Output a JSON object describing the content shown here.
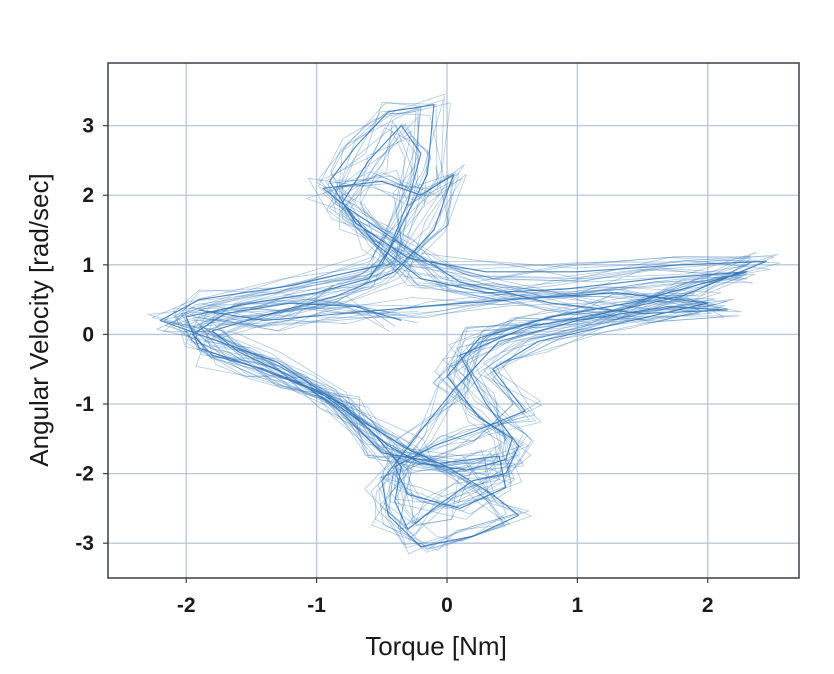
{
  "chart_data": {
    "type": "line",
    "title": "",
    "xlabel": "Torque [Nm]",
    "ylabel": "Angular Velocity [rad/sec]",
    "xlim": [
      -2.6,
      2.7
    ],
    "ylim": [
      -3.5,
      3.9
    ],
    "x_ticks": [
      -2,
      -1,
      0,
      1,
      2
    ],
    "y_ticks": [
      -3,
      -2,
      -1,
      0,
      1,
      2,
      3
    ],
    "x_tick_labels": [
      "-2",
      "-1",
      "0",
      "1",
      "2"
    ],
    "y_tick_labels": [
      "-3",
      "-2",
      "-1",
      "0",
      "1",
      "2",
      "3"
    ],
    "grid": true,
    "legend": "none",
    "line_color": "#2a72b5",
    "grid_color": "#b8c8d8",
    "axis_color": "#3a3f47",
    "series": [
      {
        "values": [
          [
            -0.35,
            0.2
          ],
          [
            -0.7,
            0.4
          ],
          [
            -1.2,
            0.45
          ],
          [
            -1.7,
            0.3
          ],
          [
            -1.95,
            0.0
          ],
          [
            -1.8,
            -0.3
          ],
          [
            -1.4,
            -0.5
          ],
          [
            -1.0,
            -0.8
          ],
          [
            -0.7,
            -1.2
          ],
          [
            -0.45,
            -1.6
          ],
          [
            -0.2,
            -1.85
          ],
          [
            0.15,
            -1.95
          ],
          [
            0.45,
            -1.8
          ],
          [
            0.5,
            -1.5
          ],
          [
            0.25,
            -1.2
          ],
          [
            0.0,
            -0.6
          ],
          [
            0.25,
            -0.05
          ],
          [
            0.8,
            0.25
          ],
          [
            1.4,
            0.45
          ],
          [
            1.9,
            0.7
          ],
          [
            2.3,
            0.9
          ],
          [
            1.6,
            0.8
          ],
          [
            0.9,
            0.65
          ],
          [
            0.3,
            0.6
          ],
          [
            -0.2,
            0.8
          ],
          [
            -0.55,
            1.3
          ],
          [
            -0.8,
            1.9
          ],
          [
            -0.6,
            2.5
          ],
          [
            -0.35,
            3.0
          ],
          [
            -0.2,
            2.6
          ],
          [
            -0.3,
            1.9
          ],
          [
            -0.45,
            1.2
          ],
          [
            -0.6,
            0.8
          ],
          [
            -1.0,
            0.6
          ],
          [
            -1.5,
            0.45
          ],
          [
            -2.0,
            0.25
          ],
          [
            -1.9,
            -0.2
          ],
          [
            -1.5,
            -0.45
          ],
          [
            -1.15,
            -0.7
          ],
          [
            -0.8,
            -1.0
          ],
          [
            -0.55,
            -1.45
          ],
          [
            -0.35,
            -1.9
          ],
          [
            -0.4,
            -2.4
          ],
          [
            -0.3,
            -2.8
          ],
          [
            -0.1,
            -2.5
          ],
          [
            0.2,
            -2.1
          ],
          [
            0.45,
            -2.0
          ],
          [
            0.55,
            -1.6
          ],
          [
            0.3,
            -1.0
          ],
          [
            0.1,
            -0.3
          ],
          [
            0.6,
            0.1
          ],
          [
            1.2,
            0.3
          ],
          [
            1.8,
            0.55
          ],
          [
            2.45,
            1.05
          ],
          [
            1.8,
            1.0
          ],
          [
            1.0,
            0.9
          ],
          [
            0.3,
            0.9
          ],
          [
            -0.3,
            1.1
          ],
          [
            -0.7,
            1.6
          ],
          [
            -0.9,
            2.2
          ],
          [
            -0.7,
            2.7
          ],
          [
            -0.45,
            3.2
          ],
          [
            -0.1,
            3.3
          ],
          [
            -0.15,
            2.3
          ],
          [
            -0.5,
            1.0
          ],
          [
            -1.2,
            0.7
          ],
          [
            -1.9,
            0.5
          ],
          [
            -2.2,
            0.2
          ],
          [
            -1.75,
            -0.1
          ],
          [
            -1.3,
            -0.4
          ],
          [
            -0.9,
            -0.9
          ],
          [
            -0.6,
            -1.3
          ],
          [
            -0.3,
            -1.65
          ],
          [
            0.0,
            -1.9
          ],
          [
            0.35,
            -2.3
          ],
          [
            0.55,
            -2.6
          ],
          [
            0.2,
            -2.9
          ],
          [
            -0.2,
            -3.05
          ],
          [
            -0.45,
            -2.6
          ],
          [
            -0.5,
            -2.1
          ],
          [
            -0.25,
            -1.5
          ],
          [
            0.05,
            -0.8
          ],
          [
            0.4,
            -0.1
          ],
          [
            1.0,
            0.2
          ],
          [
            1.7,
            0.4
          ],
          [
            2.15,
            0.35
          ],
          [
            1.5,
            0.3
          ],
          [
            0.8,
            0.45
          ],
          [
            0.1,
            0.75
          ],
          [
            -0.35,
            1.3
          ],
          [
            -0.75,
            1.8
          ],
          [
            -0.95,
            2.1
          ],
          [
            -0.5,
            2.2
          ],
          [
            -0.2,
            2.0
          ],
          [
            0.05,
            2.3
          ],
          [
            -0.1,
            1.5
          ],
          [
            -0.4,
            0.9
          ],
          [
            -0.85,
            0.55
          ],
          [
            -1.35,
            0.3
          ],
          [
            -1.8,
            0.05
          ],
          [
            -1.6,
            -0.25
          ],
          [
            -1.2,
            -0.6
          ],
          [
            -0.85,
            -1.05
          ],
          [
            -0.5,
            -1.7
          ],
          [
            -0.05,
            -1.85
          ],
          [
            0.4,
            -1.75
          ],
          [
            0.45,
            -2.2
          ],
          [
            0.1,
            -2.5
          ],
          [
            -0.3,
            -2.3
          ],
          [
            -0.4,
            -1.9
          ],
          [
            -0.1,
            -1.6
          ],
          [
            0.2,
            -1.4
          ],
          [
            0.6,
            -1.1
          ],
          [
            0.35,
            -0.5
          ],
          [
            0.7,
            -0.1
          ],
          [
            1.3,
            0.15
          ],
          [
            2.0,
            0.45
          ],
          [
            1.3,
            0.6
          ],
          [
            0.5,
            0.5
          ],
          [
            -0.2,
            0.4
          ],
          [
            -0.8,
            0.3
          ],
          [
            -1.4,
            0.2
          ],
          [
            -1.9,
            0.35
          ]
        ]
      }
    ]
  }
}
